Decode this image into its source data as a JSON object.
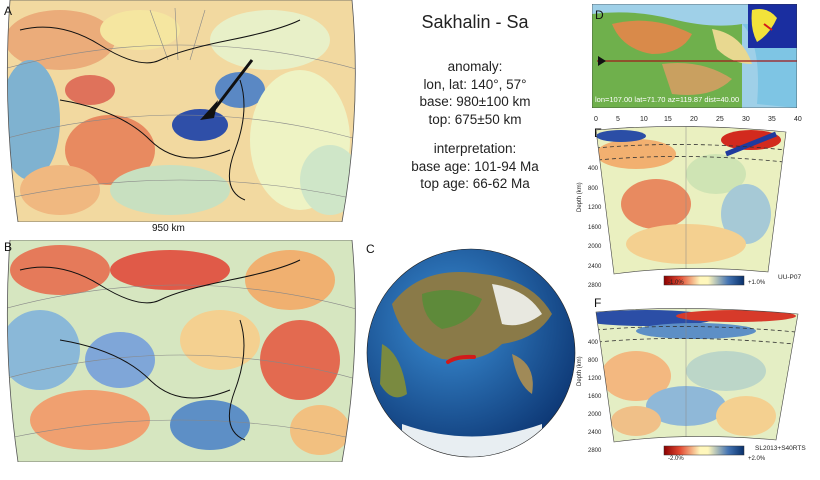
{
  "title": "Sakhalin - Sa",
  "panels": {
    "a": "A",
    "b": "B",
    "c": "C",
    "d": "D",
    "e": "E",
    "f": "F"
  },
  "map_a": {
    "scale_label": "950 km"
  },
  "anomaly": {
    "heading": "anomaly:",
    "lonlat": "lon, lat: 140°, 57°",
    "base": "base: 980±100 km",
    "top": "top: 675±50 km"
  },
  "interpretation": {
    "heading": "interpretation:",
    "base_age": "base age: 101-94 Ma",
    "top_age": "top age: 66-62 Ma"
  },
  "panel_d": {
    "status": "lon=107.00 lat=71.70 az=119.87 dist=40.00"
  },
  "section_e": {
    "distance_ticks": [
      "0",
      "5",
      "10",
      "15",
      "20",
      "25",
      "30",
      "35",
      "40"
    ],
    "depth_ticks": [
      "400",
      "800",
      "1200",
      "1600",
      "2000",
      "2400",
      "2800"
    ],
    "depth_label": "Depth (km)",
    "model": "UU-P07",
    "scale_min": "-1.0%",
    "scale_max": "+1.0%"
  },
  "section_f": {
    "depth_ticks": [
      "400",
      "800",
      "1200",
      "1600",
      "2000",
      "2400",
      "2800"
    ],
    "depth_label": "Depth (km)",
    "model": "SL2013+S40RTS",
    "scale_min": "-2.0%",
    "scale_max": "+2.0%"
  },
  "colors": {
    "slow": "#c0392b",
    "neutral": "#f3f0b0",
    "fast": "#1f3a9e"
  }
}
